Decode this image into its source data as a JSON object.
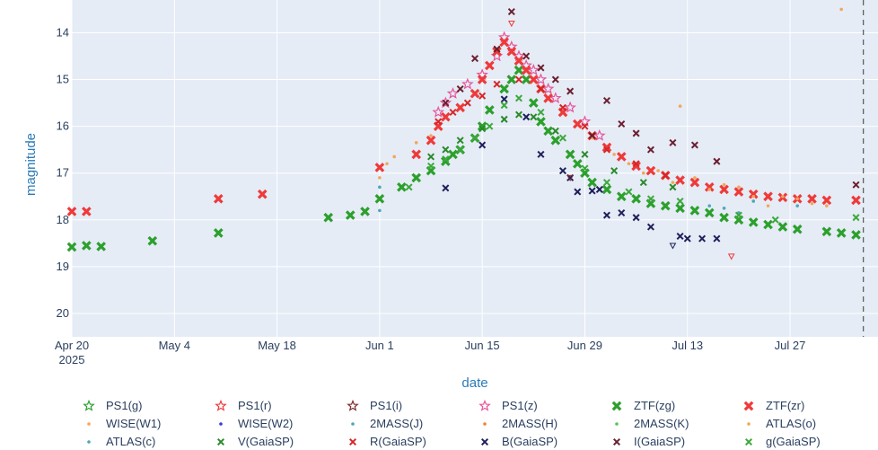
{
  "chart_data": {
    "type": "scatter",
    "title": "",
    "xlabel": "date",
    "ylabel": "magnitude",
    "x_axis": {
      "range": [
        "2025-04-20",
        "2025-08-08"
      ],
      "ticks": [
        {
          "date": "2025-04-20",
          "label": "Apr 20",
          "sub": "2025"
        },
        {
          "date": "2025-05-04",
          "label": "May 4"
        },
        {
          "date": "2025-05-18",
          "label": "May 18"
        },
        {
          "date": "2025-06-01",
          "label": "Jun 1"
        },
        {
          "date": "2025-06-15",
          "label": "Jun 15"
        },
        {
          "date": "2025-06-29",
          "label": "Jun 29"
        },
        {
          "date": "2025-07-13",
          "label": "Jul 13"
        },
        {
          "date": "2025-07-27",
          "label": "Jul 27"
        }
      ]
    },
    "y_axis": {
      "range": [
        13.3,
        20.5
      ],
      "reversed": true,
      "ticks": [
        14,
        15,
        16,
        17,
        18,
        19,
        20
      ]
    },
    "grid": true,
    "vertical_line": {
      "date": "2025-08-06",
      "style": "dashed"
    },
    "legend_position": "bottom",
    "series": [
      {
        "name": "PS1(g)",
        "color": "#2ca02c",
        "marker": "star-open",
        "points": []
      },
      {
        "name": "PS1(r)",
        "color": "#ef3a3a",
        "marker": "star-open",
        "points": []
      },
      {
        "name": "PS1(i)",
        "color": "#7f2b2b",
        "marker": "star-open",
        "points": []
      },
      {
        "name": "PS1(z)",
        "color": "#e7549a",
        "marker": "star-open",
        "points": [
          [
            "2025-06-09",
            15.7
          ],
          [
            "2025-06-10",
            15.5
          ],
          [
            "2025-06-11",
            15.3
          ],
          [
            "2025-06-13",
            15.1
          ],
          [
            "2025-06-15",
            14.9
          ],
          [
            "2025-06-17",
            14.5
          ],
          [
            "2025-06-18",
            14.1
          ],
          [
            "2025-06-19",
            14.3
          ],
          [
            "2025-06-20",
            14.5
          ],
          [
            "2025-06-21",
            14.7
          ],
          [
            "2025-06-22",
            14.8
          ],
          [
            "2025-06-23",
            15.0
          ],
          [
            "2025-06-24",
            15.2
          ],
          [
            "2025-06-25",
            15.4
          ],
          [
            "2025-06-27",
            15.6
          ],
          [
            "2025-06-29",
            15.9
          ],
          [
            "2025-07-01",
            16.2
          ]
        ]
      },
      {
        "name": "ZTF(zg)",
        "color": "#2ca02c",
        "marker": "x-thick",
        "points": [
          [
            "2025-04-20",
            18.58
          ],
          [
            "2025-04-22",
            18.55
          ],
          [
            "2025-04-24",
            18.57
          ],
          [
            "2025-05-01",
            18.45
          ],
          [
            "2025-05-10",
            18.28
          ],
          [
            "2025-05-25",
            17.95
          ],
          [
            "2025-05-28",
            17.9
          ],
          [
            "2025-05-30",
            17.82
          ],
          [
            "2025-06-01",
            17.55
          ],
          [
            "2025-06-04",
            17.3
          ],
          [
            "2025-06-06",
            17.1
          ],
          [
            "2025-06-08",
            16.95
          ],
          [
            "2025-06-10",
            16.75
          ],
          [
            "2025-06-11",
            16.6
          ],
          [
            "2025-06-12",
            16.5
          ],
          [
            "2025-06-14",
            16.25
          ],
          [
            "2025-06-15",
            16.0
          ],
          [
            "2025-06-16",
            15.65
          ],
          [
            "2025-06-18",
            15.2
          ],
          [
            "2025-06-19",
            15.0
          ],
          [
            "2025-06-20",
            14.8
          ],
          [
            "2025-06-21",
            15.0
          ],
          [
            "2025-06-22",
            15.5
          ],
          [
            "2025-06-23",
            15.9
          ],
          [
            "2025-06-24",
            16.1
          ],
          [
            "2025-06-25",
            16.3
          ],
          [
            "2025-06-27",
            16.6
          ],
          [
            "2025-06-28",
            16.8
          ],
          [
            "2025-06-29",
            17.0
          ],
          [
            "2025-06-30",
            17.2
          ],
          [
            "2025-07-02",
            17.35
          ],
          [
            "2025-07-04",
            17.5
          ],
          [
            "2025-07-06",
            17.55
          ],
          [
            "2025-07-08",
            17.65
          ],
          [
            "2025-07-10",
            17.7
          ],
          [
            "2025-07-12",
            17.75
          ],
          [
            "2025-07-14",
            17.8
          ],
          [
            "2025-07-16",
            17.85
          ],
          [
            "2025-07-18",
            17.95
          ],
          [
            "2025-07-20",
            18.0
          ],
          [
            "2025-07-22",
            18.05
          ],
          [
            "2025-07-24",
            18.1
          ],
          [
            "2025-07-26",
            18.15
          ],
          [
            "2025-07-28",
            18.2
          ],
          [
            "2025-08-01",
            18.25
          ],
          [
            "2025-08-03",
            18.28
          ],
          [
            "2025-08-05",
            18.32
          ]
        ]
      },
      {
        "name": "ZTF(zr)",
        "color": "#ef3a3a",
        "marker": "x-thick",
        "points": [
          [
            "2025-04-20",
            17.82
          ],
          [
            "2025-04-22",
            17.82
          ],
          [
            "2025-05-10",
            17.55
          ],
          [
            "2025-05-16",
            17.45
          ],
          [
            "2025-06-01",
            16.88
          ],
          [
            "2025-06-06",
            16.6
          ],
          [
            "2025-06-08",
            16.3
          ],
          [
            "2025-06-09",
            16.0
          ],
          [
            "2025-06-10",
            15.8
          ],
          [
            "2025-06-12",
            15.6
          ],
          [
            "2025-06-14",
            15.3
          ],
          [
            "2025-06-15",
            15.0
          ],
          [
            "2025-06-16",
            14.7
          ],
          [
            "2025-06-17",
            14.4
          ],
          [
            "2025-06-18",
            14.2
          ],
          [
            "2025-06-19",
            14.4
          ],
          [
            "2025-06-20",
            14.6
          ],
          [
            "2025-06-21",
            14.8
          ],
          [
            "2025-06-22",
            15.0
          ],
          [
            "2025-06-23",
            15.2
          ],
          [
            "2025-06-24",
            15.4
          ],
          [
            "2025-06-26",
            15.7
          ],
          [
            "2025-06-28",
            15.95
          ],
          [
            "2025-06-30",
            16.2
          ],
          [
            "2025-07-02",
            16.45
          ],
          [
            "2025-07-04",
            16.65
          ],
          [
            "2025-07-06",
            16.85
          ],
          [
            "2025-07-08",
            16.95
          ],
          [
            "2025-07-10",
            17.05
          ],
          [
            "2025-07-12",
            17.15
          ],
          [
            "2025-07-14",
            17.2
          ],
          [
            "2025-07-16",
            17.3
          ],
          [
            "2025-07-18",
            17.35
          ],
          [
            "2025-07-20",
            17.4
          ],
          [
            "2025-07-22",
            17.45
          ],
          [
            "2025-07-24",
            17.5
          ],
          [
            "2025-07-26",
            17.52
          ],
          [
            "2025-07-28",
            17.55
          ],
          [
            "2025-07-30",
            17.55
          ],
          [
            "2025-08-01",
            17.58
          ],
          [
            "2025-08-05",
            17.58
          ]
        ]
      },
      {
        "name": "WISE(W1)",
        "color": "#ffa15a",
        "marker": "dot",
        "points": []
      },
      {
        "name": "WISE(W2)",
        "color": "#3b3bd6",
        "marker": "dot",
        "points": []
      },
      {
        "name": "2MASS(J)",
        "color": "#4fa7b5",
        "marker": "dot",
        "points": []
      },
      {
        "name": "2MASS(H)",
        "color": "#f08040",
        "marker": "dot",
        "points": []
      },
      {
        "name": "2MASS(K)",
        "color": "#58c458",
        "marker": "dot",
        "points": []
      },
      {
        "name": "ATLAS(o)",
        "color": "#f2a65a",
        "marker": "dot",
        "points": [
          [
            "2025-06-01",
            17.1
          ],
          [
            "2025-06-02",
            16.8
          ],
          [
            "2025-06-03",
            16.65
          ],
          [
            "2025-06-06",
            16.35
          ],
          [
            "2025-06-08",
            16.2
          ],
          [
            "2025-06-30",
            16.25
          ],
          [
            "2025-07-03",
            16.6
          ],
          [
            "2025-07-05",
            16.8
          ],
          [
            "2025-07-07",
            17.0
          ],
          [
            "2025-07-09",
            16.95
          ],
          [
            "2025-07-11",
            17.2
          ],
          [
            "2025-07-12",
            15.57
          ],
          [
            "2025-07-14",
            17.1
          ],
          [
            "2025-07-16",
            17.35
          ],
          [
            "2025-07-18",
            17.25
          ],
          [
            "2025-07-20",
            17.3
          ],
          [
            "2025-07-22",
            17.5
          ],
          [
            "2025-07-24",
            17.7
          ],
          [
            "2025-07-26",
            17.5
          ],
          [
            "2025-07-28",
            17.55
          ],
          [
            "2025-07-30",
            17.65
          ],
          [
            "2025-08-01",
            17.7
          ],
          [
            "2025-08-03",
            13.5
          ]
        ]
      },
      {
        "name": "ATLAS(c)",
        "color": "#4fa7b5",
        "marker": "dot",
        "points": [
          [
            "2025-06-01",
            17.3
          ],
          [
            "2025-06-01",
            17.8
          ],
          [
            "2025-07-16",
            17.7
          ],
          [
            "2025-07-18",
            17.75
          ],
          [
            "2025-07-20",
            17.85
          ],
          [
            "2025-07-22",
            17.6
          ],
          [
            "2025-07-28",
            17.7
          ]
        ]
      },
      {
        "name": "V(GaiaSP)",
        "color": "#2a8a2a",
        "marker": "x-thin",
        "points": [
          [
            "2025-06-08",
            16.65
          ],
          [
            "2025-06-10",
            16.5
          ],
          [
            "2025-06-12",
            16.3
          ],
          [
            "2025-06-15",
            16.05
          ],
          [
            "2025-06-18",
            15.85
          ],
          [
            "2025-06-20",
            15.75
          ],
          [
            "2025-06-22",
            15.8
          ],
          [
            "2025-06-25",
            16.1
          ],
          [
            "2025-06-29",
            16.6
          ],
          [
            "2025-07-03",
            16.95
          ],
          [
            "2025-07-07",
            17.2
          ],
          [
            "2025-07-11",
            17.3
          ]
        ]
      },
      {
        "name": "R(GaiaSP)",
        "color": "#d62728",
        "marker": "x-thin",
        "points": [
          [
            "2025-06-09",
            15.9
          ],
          [
            "2025-06-11",
            15.7
          ],
          [
            "2025-06-13",
            15.5
          ],
          [
            "2025-06-15",
            15.35
          ],
          [
            "2025-06-17",
            15.1
          ],
          [
            "2025-06-20",
            15.0
          ],
          [
            "2025-06-23",
            15.2
          ],
          [
            "2025-06-26",
            15.6
          ],
          [
            "2025-06-29",
            16.0
          ],
          [
            "2025-07-02",
            16.5
          ],
          [
            "2025-07-06",
            16.8
          ],
          [
            "2025-07-10",
            17.05
          ]
        ]
      },
      {
        "name": "B(GaiaSP)",
        "color": "#1f1f5a",
        "marker": "x-thin",
        "points": [
          [
            "2025-06-10",
            17.32
          ],
          [
            "2025-06-15",
            16.4
          ],
          [
            "2025-06-18",
            15.42
          ],
          [
            "2025-06-21",
            15.8
          ],
          [
            "2025-06-23",
            16.6
          ],
          [
            "2025-06-26",
            16.95
          ],
          [
            "2025-06-27",
            17.1
          ],
          [
            "2025-06-28",
            17.4
          ],
          [
            "2025-06-30",
            17.38
          ],
          [
            "2025-07-01",
            17.35
          ],
          [
            "2025-07-02",
            17.9
          ],
          [
            "2025-07-04",
            17.85
          ],
          [
            "2025-07-06",
            17.95
          ],
          [
            "2025-07-08",
            18.15
          ],
          [
            "2025-07-12",
            18.35
          ],
          [
            "2025-07-13",
            18.4
          ],
          [
            "2025-07-15",
            18.4
          ],
          [
            "2025-07-17",
            18.4
          ]
        ]
      },
      {
        "name": "I(GaiaSP)",
        "color": "#6b1f2e",
        "marker": "x-thin",
        "points": [
          [
            "2025-06-10",
            15.5
          ],
          [
            "2025-06-12",
            15.2
          ],
          [
            "2025-06-14",
            14.55
          ],
          [
            "2025-06-17",
            14.35
          ],
          [
            "2025-06-19",
            13.55
          ],
          [
            "2025-06-21",
            14.5
          ],
          [
            "2025-06-23",
            14.75
          ],
          [
            "2025-06-25",
            15.0
          ],
          [
            "2025-06-27",
            15.25
          ],
          [
            "2025-06-30",
            16.2
          ],
          [
            "2025-07-02",
            15.45
          ],
          [
            "2025-07-04",
            15.95
          ],
          [
            "2025-07-06",
            16.15
          ],
          [
            "2025-07-08",
            16.5
          ],
          [
            "2025-07-11",
            16.35
          ],
          [
            "2025-07-14",
            16.4
          ],
          [
            "2025-07-17",
            16.75
          ],
          [
            "2025-08-05",
            17.25
          ]
        ]
      },
      {
        "name": "g(GaiaSP)",
        "color": "#3ca83c",
        "marker": "x-thin",
        "points": [
          [
            "2025-06-05",
            17.3
          ],
          [
            "2025-06-08",
            16.85
          ],
          [
            "2025-06-10",
            16.7
          ],
          [
            "2025-06-12",
            16.5
          ],
          [
            "2025-06-14",
            16.25
          ],
          [
            "2025-06-16",
            16.0
          ],
          [
            "2025-06-18",
            15.55
          ],
          [
            "2025-06-20",
            15.4
          ],
          [
            "2025-06-23",
            15.7
          ],
          [
            "2025-06-26",
            16.25
          ],
          [
            "2025-06-29",
            16.9
          ],
          [
            "2025-07-02",
            17.2
          ],
          [
            "2025-07-05",
            17.4
          ],
          [
            "2025-07-08",
            17.55
          ],
          [
            "2025-07-12",
            17.6
          ],
          [
            "2025-07-20",
            17.9
          ],
          [
            "2025-07-25",
            18.0
          ],
          [
            "2025-08-05",
            17.95
          ]
        ]
      }
    ],
    "upper_limits": [
      {
        "date": "2025-06-19",
        "mag": 13.8,
        "color": "#ef3a3a"
      },
      {
        "date": "2025-06-27",
        "mag": 17.1,
        "color": "#7f2b2b"
      },
      {
        "date": "2025-07-11",
        "mag": 18.55,
        "color": "#1f1f5a"
      },
      {
        "date": "2025-07-19",
        "mag": 18.78,
        "color": "#ef3a3a"
      }
    ]
  }
}
